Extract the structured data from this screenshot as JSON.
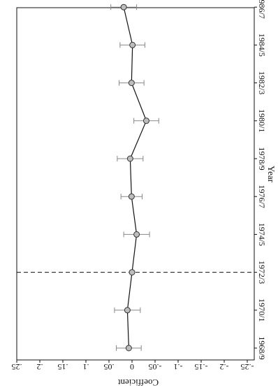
{
  "chart_data": {
    "type": "line",
    "orientation": "rotated-90-clockwise",
    "xlabel": "Year",
    "ylabel": "Coefficient",
    "categories": [
      "1968/9",
      "1970/1",
      "1972/3",
      "1974/5",
      "1976/7",
      "1978/9",
      "1980/1",
      "1982/3",
      "1984/5",
      "1986/7"
    ],
    "y_ticks": [
      ".25",
      ".2",
      ".15",
      ".1",
      ".05",
      "0",
      "-.05",
      "-.1",
      "-.15",
      "-.2",
      "-.25"
    ],
    "y_tick_values": [
      0.25,
      0.2,
      0.15,
      0.1,
      0.05,
      0,
      -0.05,
      -0.1,
      -0.15,
      -0.2,
      -0.25
    ],
    "ylim": [
      -0.25,
      0.25
    ],
    "series": [
      {
        "x": [
          "1968/9",
          "1970/1",
          "1972/3",
          "1974/5",
          "1976/7",
          "1978/9",
          "1980/1",
          "1982/3",
          "1984/5",
          "1986/7"
        ],
        "values": [
          0.007,
          0.01,
          0,
          -0.01,
          0.001,
          0.004,
          -0.031,
          0.001,
          -0.001,
          0.018
        ],
        "ci_low": [
          -0.02,
          -0.018,
          null,
          -0.038,
          -0.022,
          -0.024,
          -0.058,
          -0.026,
          -0.028,
          -0.01
        ],
        "ci_high": [
          0.034,
          0.038,
          null,
          0.018,
          0.024,
          0.032,
          -0.004,
          0.028,
          0.026,
          0.046
        ]
      }
    ],
    "reference_line": {
      "category": "1972/3",
      "style": "dashed"
    },
    "grid": false,
    "legend": "none",
    "colors": {
      "line": "#111111",
      "ci": "#888888",
      "marker_fill": "#bdbdbd",
      "axis": "#111111"
    }
  }
}
